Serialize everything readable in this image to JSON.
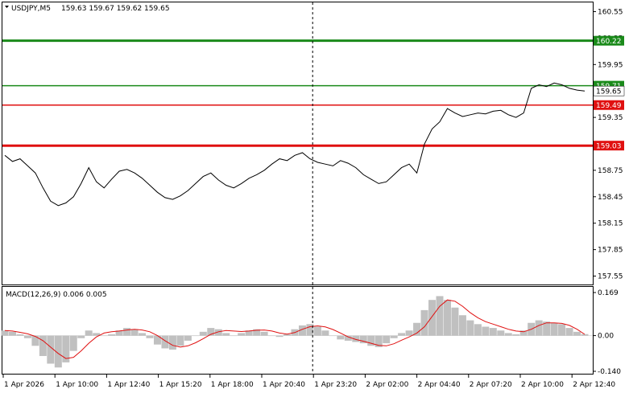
{
  "chart_data": [
    {
      "type": "line",
      "title": "USDJPY,M5",
      "ohlc_label": "159.63 159.67 159.62 159.65",
      "ylim": [
        157.5,
        160.6
      ],
      "y_ticks": [
        "160.55",
        "160.25",
        "159.95",
        "159.65",
        "159.35",
        "159.05",
        "158.75",
        "158.45",
        "158.15",
        "157.85",
        "157.55"
      ],
      "x_ticks": [
        "1 Apr 2026",
        "1 Apr 10:00",
        "1 Apr 12:40",
        "1 Apr 15:20",
        "1 Apr 18:00",
        "1 Apr 20:40",
        "1 Apr 23:20",
        "2 Apr 02:00",
        "2 Apr 04:40",
        "2 Apr 07:20",
        "2 Apr 10:00",
        "2 Apr 12:40"
      ],
      "vertical_marker": "1 Apr 23:20",
      "current_price": {
        "value": 159.65,
        "label": "159.65"
      },
      "levels": [
        {
          "value": 160.22,
          "label": "160.22",
          "color": "#1a8a1a",
          "thick": true
        },
        {
          "value": 159.71,
          "label": "159.71",
          "color": "#1a8a1a",
          "thick": false
        },
        {
          "value": 159.49,
          "label": "159.49",
          "color": "#e01010",
          "thick": false
        },
        {
          "value": 159.03,
          "label": "159.03",
          "color": "#e01010",
          "thick": true
        }
      ],
      "series": [
        {
          "color": "#000000",
          "values": [
            158.92,
            158.85,
            158.88,
            158.8,
            158.72,
            158.55,
            158.4,
            158.35,
            158.38,
            158.45,
            158.6,
            158.78,
            158.62,
            158.55,
            158.65,
            158.74,
            158.76,
            158.72,
            158.66,
            158.58,
            158.5,
            158.44,
            158.42,
            158.46,
            158.52,
            158.6,
            158.68,
            158.72,
            158.64,
            158.58,
            158.55,
            158.6,
            158.66,
            158.7,
            158.75,
            158.82,
            158.88,
            158.86,
            158.92,
            158.95,
            158.88,
            158.84,
            158.82,
            158.8,
            158.86,
            158.83,
            158.78,
            158.7,
            158.65,
            158.6,
            158.62,
            158.7,
            158.78,
            158.82,
            158.72,
            159.05,
            159.22,
            159.3,
            159.45,
            159.4,
            159.36,
            159.38,
            159.4,
            159.39,
            159.42,
            159.43,
            159.38,
            159.35,
            159.4,
            159.68,
            159.72,
            159.7,
            159.74,
            159.72,
            159.68,
            159.66,
            159.65
          ]
        }
      ]
    },
    {
      "type": "bar",
      "title": "MACD(12,26,9) 0.006 0.005",
      "ylim": [
        -0.14,
        0.169
      ],
      "y_ticks": [
        "0.169",
        "0.00",
        "-0.140"
      ],
      "series": [
        {
          "color": "#c0c0c0",
          "values": [
            0.02,
            0.015,
            0.005,
            -0.01,
            -0.04,
            -0.08,
            -0.11,
            -0.125,
            -0.105,
            -0.06,
            -0.01,
            0.02,
            0.01,
            0.0,
            0.005,
            0.02,
            0.03,
            0.025,
            0.01,
            -0.01,
            -0.035,
            -0.05,
            -0.055,
            -0.04,
            -0.02,
            0.0,
            0.015,
            0.03,
            0.025,
            0.01,
            0.0,
            0.01,
            0.02,
            0.025,
            0.015,
            0.0,
            -0.005,
            0.005,
            0.025,
            0.04,
            0.045,
            0.035,
            0.02,
            0.0,
            -0.015,
            -0.02,
            -0.025,
            -0.03,
            -0.04,
            -0.045,
            -0.03,
            -0.01,
            0.01,
            0.02,
            0.05,
            0.1,
            0.14,
            0.155,
            0.14,
            0.11,
            0.08,
            0.06,
            0.045,
            0.035,
            0.03,
            0.02,
            0.01,
            0.005,
            0.02,
            0.05,
            0.06,
            0.055,
            0.05,
            0.045,
            0.03,
            0.015,
            0.006
          ]
        },
        {
          "color": "#e01010",
          "values": [
            0.02,
            0.018,
            0.013,
            0.007,
            -0.003,
            -0.02,
            -0.045,
            -0.07,
            -0.09,
            -0.085,
            -0.06,
            -0.03,
            -0.005,
            0.01,
            0.015,
            0.018,
            0.022,
            0.025,
            0.022,
            0.015,
            0.0,
            -0.02,
            -0.038,
            -0.045,
            -0.04,
            -0.028,
            -0.012,
            0.005,
            0.015,
            0.02,
            0.018,
            0.016,
            0.018,
            0.021,
            0.022,
            0.018,
            0.01,
            0.006,
            0.012,
            0.025,
            0.035,
            0.038,
            0.034,
            0.024,
            0.01,
            -0.005,
            -0.015,
            -0.022,
            -0.03,
            -0.038,
            -0.04,
            -0.032,
            -0.018,
            -0.005,
            0.01,
            0.035,
            0.075,
            0.115,
            0.14,
            0.135,
            0.115,
            0.09,
            0.07,
            0.055,
            0.045,
            0.035,
            0.025,
            0.018,
            0.015,
            0.025,
            0.04,
            0.05,
            0.05,
            0.048,
            0.04,
            0.025,
            0.005
          ]
        }
      ]
    }
  ]
}
